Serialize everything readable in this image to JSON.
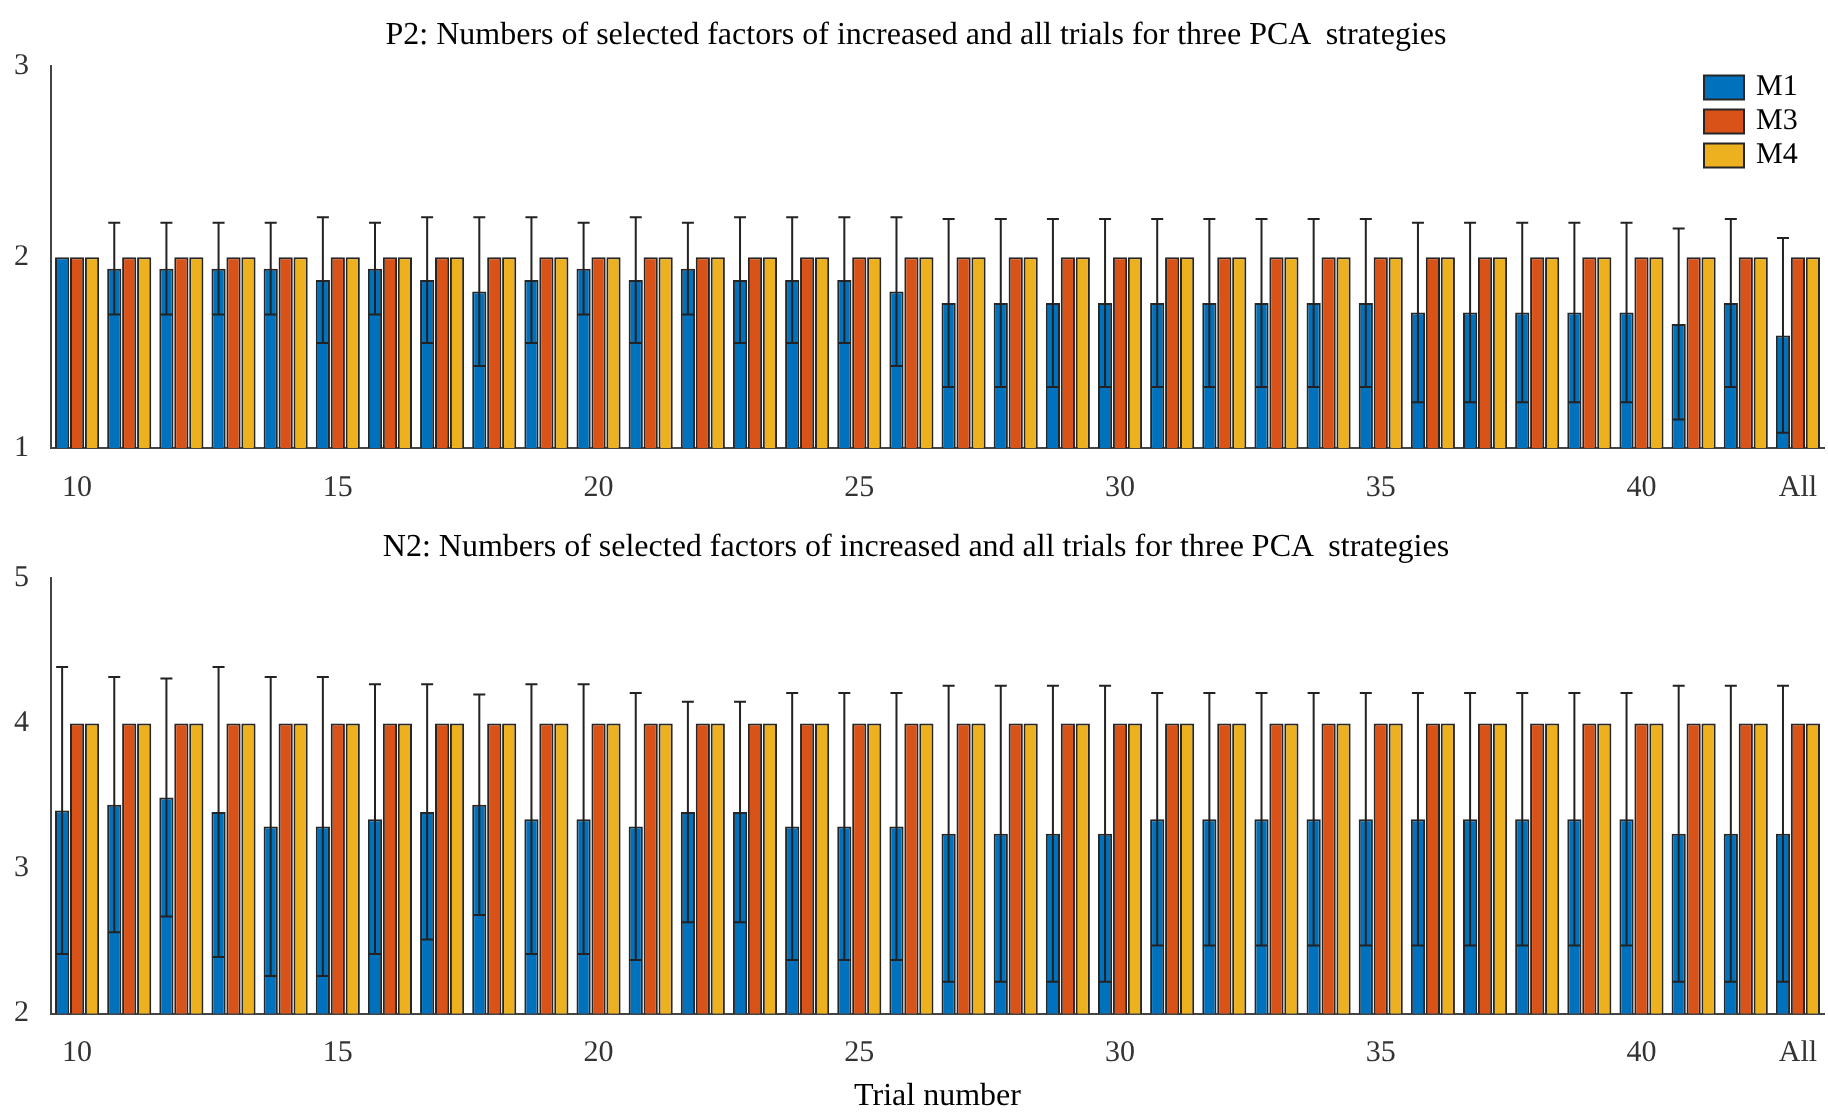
{
  "chart_data": [
    {
      "type": "bar",
      "title": "P2: Numbers of selected factors of increased and all trials for three PCA  strategies",
      "categories": [
        "10",
        null,
        null,
        null,
        null,
        "15",
        null,
        null,
        null,
        null,
        "20",
        null,
        null,
        null,
        null,
        "25",
        null,
        null,
        null,
        null,
        "30",
        null,
        null,
        null,
        null,
        "35",
        null,
        null,
        null,
        null,
        "40",
        null,
        null,
        "All"
      ],
      "series": [
        {
          "name": "M1",
          "color": "#0072bd",
          "values": [
            2.0,
            1.94,
            1.94,
            1.94,
            1.94,
            1.88,
            1.94,
            1.88,
            1.82,
            1.88,
            1.94,
            1.88,
            1.94,
            1.88,
            1.88,
            1.88,
            1.82,
            1.76,
            1.76,
            1.76,
            1.76,
            1.76,
            1.76,
            1.76,
            1.76,
            1.76,
            1.71,
            1.71,
            1.71,
            1.71,
            1.71,
            1.65,
            1.76,
            1.59
          ],
          "errors": [
            null,
            0.24,
            0.24,
            0.24,
            0.24,
            0.33,
            0.24,
            0.33,
            0.39,
            0.33,
            0.24,
            0.33,
            0.24,
            0.33,
            0.33,
            0.33,
            0.39,
            0.44,
            0.44,
            0.44,
            0.44,
            0.44,
            0.44,
            0.44,
            0.44,
            0.44,
            0.47,
            0.47,
            0.47,
            0.47,
            0.47,
            0.5,
            0.44,
            0.51
          ]
        },
        {
          "name": "M3",
          "color": "#d95319",
          "values": [
            2,
            2,
            2,
            2,
            2,
            2,
            2,
            2,
            2,
            2,
            2,
            2,
            2,
            2,
            2,
            2,
            2,
            2,
            2,
            2,
            2,
            2,
            2,
            2,
            2,
            2,
            2,
            2,
            2,
            2,
            2,
            2,
            2,
            2
          ]
        },
        {
          "name": "M4",
          "color": "#edb120",
          "values": [
            2,
            2,
            2,
            2,
            2,
            2,
            2,
            2,
            2,
            2,
            2,
            2,
            2,
            2,
            2,
            2,
            2,
            2,
            2,
            2,
            2,
            2,
            2,
            2,
            2,
            2,
            2,
            2,
            2,
            2,
            2,
            2,
            2,
            2
          ]
        }
      ],
      "ylim": [
        1,
        3
      ],
      "yticks": [
        1,
        2,
        3
      ],
      "grid": false,
      "legend": "top right"
    },
    {
      "type": "bar",
      "title": "N2: Numbers of selected factors of increased and all trials for three PCA  strategies",
      "xlabel": "Trial number",
      "categories": [
        "10",
        null,
        null,
        null,
        null,
        "15",
        null,
        null,
        null,
        null,
        "20",
        null,
        null,
        null,
        null,
        "25",
        null,
        null,
        null,
        null,
        "30",
        null,
        null,
        null,
        null,
        "35",
        null,
        null,
        null,
        null,
        "40",
        null,
        null,
        "All"
      ],
      "series": [
        {
          "color": "#0072bd",
          "values": [
            3.4,
            3.44,
            3.49,
            3.39,
            3.29,
            3.29,
            3.34,
            3.39,
            3.44,
            3.34,
            3.34,
            3.29,
            3.39,
            3.39,
            3.29,
            3.29,
            3.29,
            3.24,
            3.24,
            3.24,
            3.24,
            3.34,
            3.34,
            3.34,
            3.34,
            3.34,
            3.34,
            3.34,
            3.34,
            3.34,
            3.34,
            3.24,
            3.24,
            3.24
          ],
          "errors": [
            0.99,
            0.88,
            0.82,
            1.0,
            1.03,
            1.03,
            0.93,
            0.88,
            0.76,
            0.93,
            0.93,
            0.92,
            0.76,
            0.76,
            0.92,
            0.92,
            0.92,
            1.02,
            1.02,
            1.02,
            1.02,
            0.87,
            0.87,
            0.87,
            0.87,
            0.87,
            0.87,
            0.87,
            0.87,
            0.87,
            0.87,
            1.02,
            1.02,
            1.02
          ]
        },
        {
          "color": "#d95319",
          "values": [
            4,
            4,
            4,
            4,
            4,
            4,
            4,
            4,
            4,
            4,
            4,
            4,
            4,
            4,
            4,
            4,
            4,
            4,
            4,
            4,
            4,
            4,
            4,
            4,
            4,
            4,
            4,
            4,
            4,
            4,
            4,
            4,
            4,
            4
          ]
        },
        {
          "color": "#edb120",
          "values": [
            4,
            4,
            4,
            4,
            4,
            4,
            4,
            4,
            4,
            4,
            4,
            4,
            4,
            4,
            4,
            4,
            4,
            4,
            4,
            4,
            4,
            4,
            4,
            4,
            4,
            4,
            4,
            4,
            4,
            4,
            4,
            4,
            4,
            4
          ]
        }
      ],
      "ylim": [
        2,
        5
      ],
      "yticks": [
        2,
        3,
        4,
        5
      ],
      "grid": false,
      "legend": false
    }
  ]
}
